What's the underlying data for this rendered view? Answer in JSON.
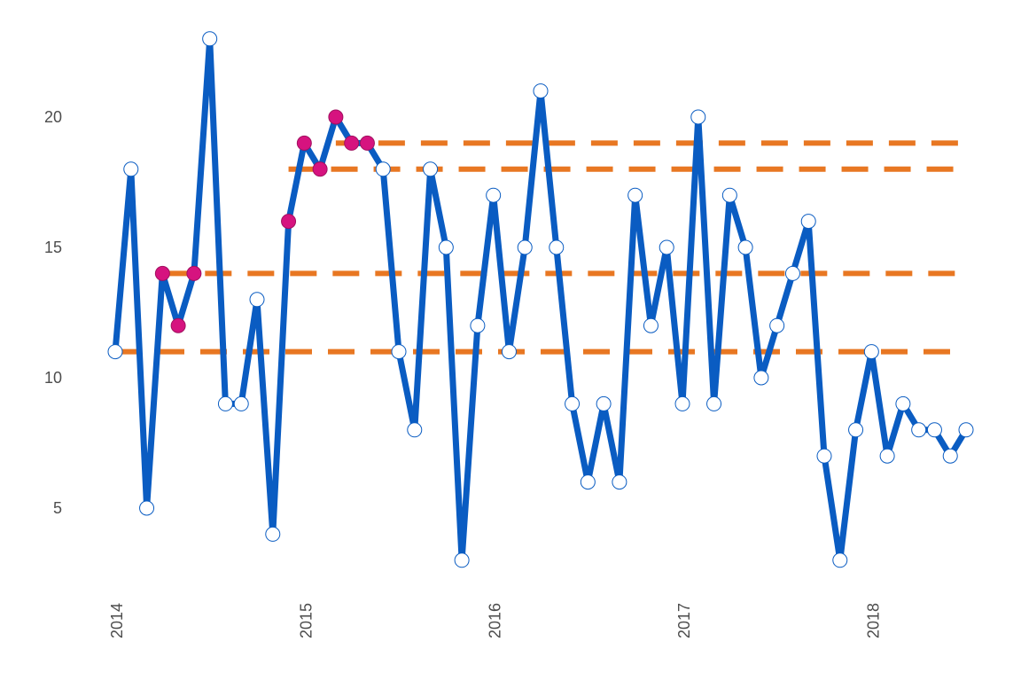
{
  "chart_data": {
    "type": "line",
    "title": "",
    "xlabel": "",
    "ylabel": "",
    "x_ticks": [
      "2014",
      "2015",
      "2016",
      "2017",
      "2018"
    ],
    "y_ticks": [
      5,
      10,
      15,
      20
    ],
    "ylim": [
      2.5,
      23.5
    ],
    "grid": false,
    "legend": "none",
    "x": [
      "2014-01",
      "2014-02",
      "2014-03",
      "2014-04",
      "2014-05",
      "2014-06",
      "2014-07",
      "2014-08",
      "2014-09",
      "2014-10",
      "2014-11",
      "2014-12",
      "2015-01",
      "2015-02",
      "2015-03",
      "2015-04",
      "2015-05",
      "2015-06",
      "2015-07",
      "2015-08",
      "2015-09",
      "2015-10",
      "2015-11",
      "2015-12",
      "2016-01",
      "2016-02",
      "2016-03",
      "2016-04",
      "2016-05",
      "2016-06",
      "2016-07",
      "2016-08",
      "2016-09",
      "2016-10",
      "2016-11",
      "2016-12",
      "2017-01",
      "2017-02",
      "2017-03",
      "2017-04",
      "2017-05",
      "2017-06",
      "2017-07",
      "2017-08",
      "2017-09",
      "2017-10",
      "2017-11",
      "2017-12",
      "2018-01",
      "2018-02",
      "2018-03",
      "2018-04",
      "2018-05",
      "2018-06",
      "2018-07"
    ],
    "series": [
      {
        "values": [
          11,
          18,
          5,
          14,
          12,
          14,
          23,
          9,
          9,
          13,
          4,
          16,
          19,
          18,
          20,
          19,
          19,
          18,
          11,
          8,
          18,
          15,
          3,
          12,
          17,
          11,
          15,
          21,
          15,
          9,
          6,
          9,
          6,
          17,
          12,
          15,
          9,
          20,
          9,
          17,
          15,
          10,
          12,
          14,
          16,
          7,
          3,
          8,
          11,
          7,
          9,
          8,
          8,
          7,
          8
        ],
        "highlighted": [
          3,
          4,
          5,
          11,
          12,
          13,
          14,
          15,
          16
        ]
      }
    ],
    "reference_lines": [
      {
        "y": 11,
        "x_start": "2014-01",
        "x_end": "2018-06"
      },
      {
        "y": 14,
        "x_start": "2014-04",
        "x_end": "2018-07"
      },
      {
        "y": 18,
        "x_start": "2014-12",
        "x_end": "2018-07"
      },
      {
        "y": 19,
        "x_start": "2015-03",
        "x_end": "2018-07"
      }
    ],
    "colors": {
      "line": "#0a5cc2",
      "point_fill": "#ffffff",
      "point_stroke": "#0a5cc2",
      "highlight_fill": "#d6137f",
      "highlight_stroke": "#a0105f",
      "reference_line": "#e87722"
    }
  }
}
